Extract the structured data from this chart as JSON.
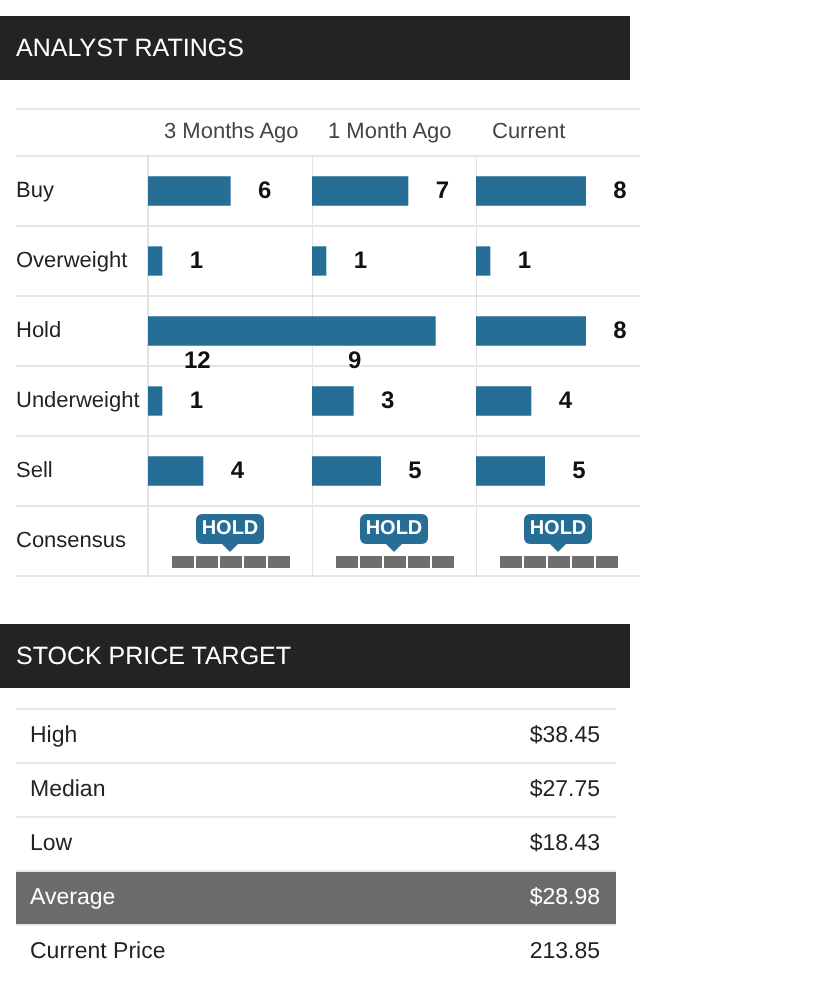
{
  "chart_data": [
    {
      "type": "bar",
      "title": "ANALYST RATINGS",
      "subtitle": "3 Months Ago",
      "orientation": "horizontal",
      "categories": [
        "Buy",
        "Overweight",
        "Hold",
        "Underweight",
        "Sell",
        "Consensus"
      ],
      "values": [
        6,
        1,
        12,
        1,
        4,
        null
      ],
      "color": "#276e96",
      "data_labels": true,
      "grid": "y",
      "tick_labels": "y",
      "annotations": [
        "HOLD"
      ]
    },
    {
      "type": "bar",
      "title": "1 Month Ago",
      "orientation": "horizontal",
      "categories": [
        null,
        null,
        null,
        null,
        null,
        null
      ],
      "values": [
        7,
        1,
        9,
        3,
        5,
        null
      ],
      "color": "#276e96",
      "data_labels": true,
      "grid": "y",
      "tick_labels": false,
      "annotations": [
        "HOLD"
      ]
    },
    {
      "type": "bar",
      "title": "Current",
      "orientation": "horizontal",
      "categories": [
        null,
        null,
        null,
        null,
        null,
        null
      ],
      "values": [
        8,
        1,
        8,
        4,
        5,
        null
      ],
      "color": "#276e96",
      "data_labels": true,
      "grid": "y",
      "tick_labels": false,
      "annotations": [
        "HOLD"
      ]
    },
    {
      "type": "other",
      "title": "STOCK PRICE TARGET",
      "annotations": [
        "High",
        "$38.45",
        "Median",
        "$27.75",
        "Low",
        "$18.43",
        "Average",
        "$28.98",
        "Current Price",
        "213.85"
      ]
    }
  ]
}
